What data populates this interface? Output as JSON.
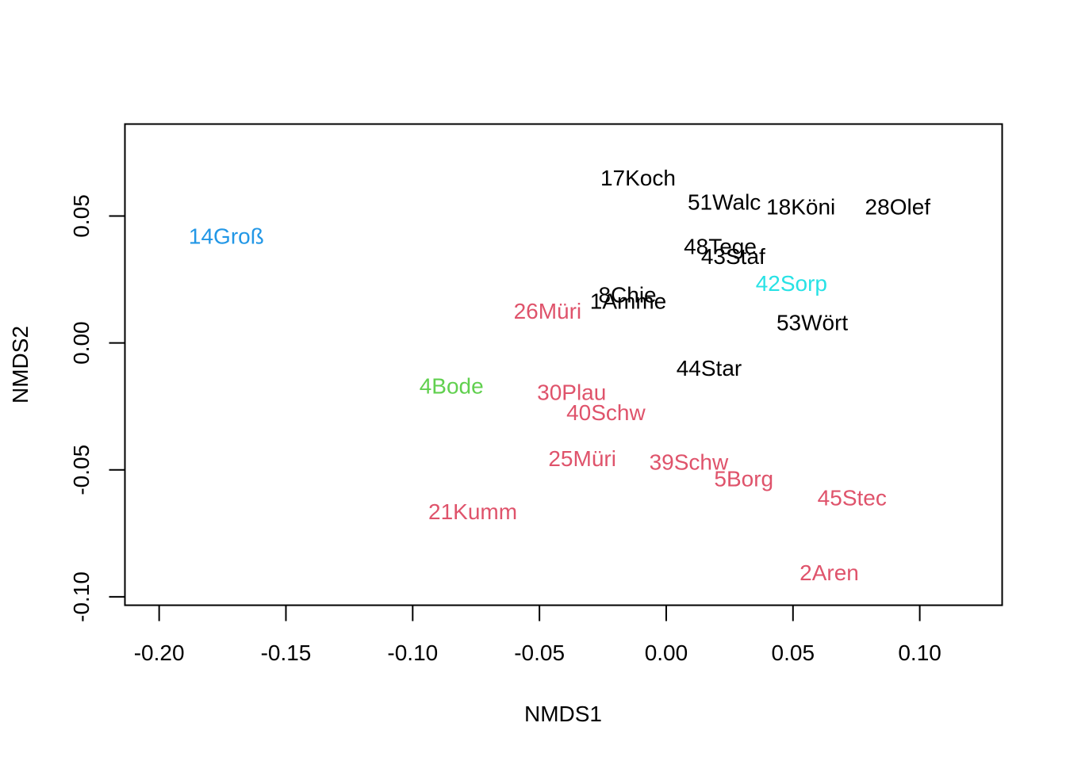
{
  "chart_data": {
    "type": "scatter",
    "title": "",
    "xlabel": "NMDS1",
    "ylabel": "NMDS2",
    "xlim": [
      -0.2135,
      0.1325
    ],
    "ylim": [
      -0.1033,
      0.0862
    ],
    "xticks": [
      -0.2,
      -0.15,
      -0.1,
      -0.05,
      0.0,
      0.05,
      0.1
    ],
    "xtick_labels": [
      "-0.20",
      "-0.15",
      "-0.10",
      "-0.05",
      "0.00",
      "0.05",
      "0.10"
    ],
    "yticks": [
      -0.1,
      -0.05,
      0.0,
      0.05
    ],
    "ytick_labels": [
      "-0.10",
      "-0.05",
      "0.00",
      "0.05"
    ],
    "grid": false,
    "colors": {
      "black": "#000000",
      "red": "#DF536B",
      "green": "#61D04F",
      "blue": "#2297E6",
      "cyan": "#28E2E5"
    },
    "points": [
      {
        "label": "17Koch",
        "x": -0.0111,
        "y": 0.065,
        "color": "black"
      },
      {
        "label": "51Walc",
        "x": 0.0229,
        "y": 0.0555,
        "color": "black"
      },
      {
        "label": "18Köni",
        "x": 0.0531,
        "y": 0.0535,
        "color": "black"
      },
      {
        "label": "28Olef",
        "x": 0.0913,
        "y": 0.0535,
        "color": "black"
      },
      {
        "label": "14Groß",
        "x": -0.1735,
        "y": 0.042,
        "color": "blue"
      },
      {
        "label": "48Tege",
        "x": 0.0213,
        "y": 0.038,
        "color": "black"
      },
      {
        "label": "43Staf",
        "x": 0.0264,
        "y": 0.034,
        "color": "black"
      },
      {
        "label": "42Sorp",
        "x": 0.0494,
        "y": 0.0235,
        "color": "cyan"
      },
      {
        "label": "8Chie",
        "x": -0.0153,
        "y": 0.019,
        "color": "black"
      },
      {
        "label": "1Amme",
        "x": -0.015,
        "y": 0.0165,
        "color": "black"
      },
      {
        "label": "26Müri",
        "x": -0.0468,
        "y": 0.0125,
        "color": "red"
      },
      {
        "label": "53Wört",
        "x": 0.0576,
        "y": 0.008,
        "color": "black"
      },
      {
        "label": "44Star",
        "x": 0.0169,
        "y": -0.01,
        "color": "black"
      },
      {
        "label": "4Bode",
        "x": -0.0847,
        "y": -0.017,
        "color": "green"
      },
      {
        "label": "30Plau",
        "x": -0.0373,
        "y": -0.0195,
        "color": "red"
      },
      {
        "label": "40Schw",
        "x": -0.0238,
        "y": -0.0275,
        "color": "red"
      },
      {
        "label": "25Müri",
        "x": -0.0331,
        "y": -0.0455,
        "color": "red"
      },
      {
        "label": "39Schw",
        "x": 0.0089,
        "y": -0.047,
        "color": "red"
      },
      {
        "label": "5Borg",
        "x": 0.0306,
        "y": -0.0535,
        "color": "red"
      },
      {
        "label": "45Stec",
        "x": 0.0733,
        "y": -0.061,
        "color": "red"
      },
      {
        "label": "21Kumm",
        "x": -0.0763,
        "y": -0.0665,
        "color": "red"
      },
      {
        "label": "2Aren",
        "x": 0.0643,
        "y": -0.0905,
        "color": "red"
      }
    ]
  }
}
